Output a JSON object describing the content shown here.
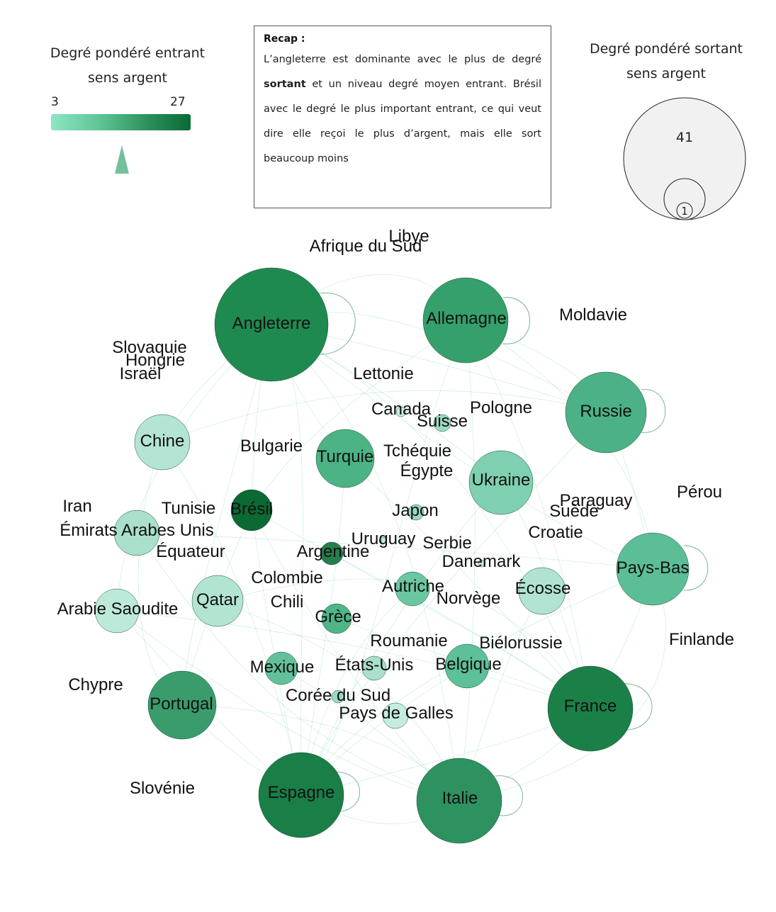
{
  "legend_in": {
    "title_line1": "Degré pondéré entrant",
    "title_line2": "sens argent",
    "min": "3",
    "max": "27",
    "gradient_colors": [
      "#8ee5c4",
      "#0a6a34"
    ]
  },
  "legend_out": {
    "title_line1": "Degré pondéré sortant",
    "title_line2": "sens argent",
    "max": "41",
    "min": "1"
  },
  "recap": {
    "title": "Recap :",
    "text_before": "L’angleterre est dominante avec le plus de degré ",
    "text_bold": "sortant",
    "text_after": " et un niveau degré moyen entrant. Brésil avec le degré le plus important entrant, ce qui veut dire elle reçoi le plus d’argent, mais elle sort beaucoup moins"
  },
  "node_labels": {
    "angleterre": "Angleterre",
    "allemagne": "Allemagne",
    "russie": "Russie",
    "pays_bas": "Pays-Bas",
    "france": "France",
    "italie": "Italie",
    "espagne": "Espagne",
    "portugal": "Portugal",
    "chine": "Chine",
    "emirats": "Émirats Arabes Unis",
    "arabie": "Arabie Saoudite",
    "qatar": "Qatar",
    "turquie": "Turquie",
    "ukraine": "Ukraine",
    "bresil": "Brésil",
    "ecosse": "Écosse",
    "belgique": "Belgique",
    "autriche": "Autriche",
    "grece": "Grèce",
    "mexique": "Mexique",
    "argentine": "Argentine",
    "etats_unis": "États-Unis",
    "pays_galles": "Pays de Galles",
    "suisse": "Suisse",
    "japon": "Japon",
    "coree": "Corée du Sud",
    "canada": "Canada",
    "uruguay": "Uruguay",
    "danemark": "Danemark",
    "libye": "Libye",
    "afrique_sud": "Afrique du Sud",
    "moldavie": "Moldavie",
    "slovaquie": "Slovaquie",
    "hongrie": "Hongrie",
    "israel": "Israël",
    "lettonie": "Lettonie",
    "pologne": "Pologne",
    "bulgarie": "Bulgarie",
    "tcheque": "Tchéquie",
    "egypte": "Égypte",
    "perou": "Pérou",
    "paraguay": "Paraguay",
    "suede": "Suède",
    "croatie": "Croatie",
    "iran": "Iran",
    "tunisie": "Tunisie",
    "equateur": "Équateur",
    "serbie": "Serbie",
    "colombie": "Colombie",
    "chili": "Chili",
    "norvege": "Norvège",
    "finlande": "Finlande",
    "roumanie": "Roumanie",
    "bielorussie": "Biélorussie",
    "chypre": "Chypre",
    "slovenie": "Slovénie"
  }
}
